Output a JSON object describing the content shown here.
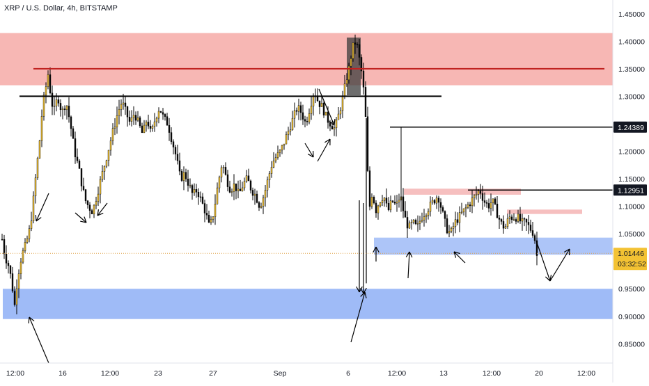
{
  "header": {
    "title": "XRP / U.S. Dollar, 4h, BITSTAMP"
  },
  "colors": {
    "bull": "#f3c233",
    "bear": "#0b0b0b",
    "resistance_zone": "#f7b3b0",
    "small_red_zone": "#f6bcbc",
    "support_zone": "#9fbbf7",
    "resistance_line": "#c0211f",
    "price_line": "#e0a44a",
    "price_label_bg": "#f3c233"
  },
  "price_axis": {
    "ticks": [
      "1.45000",
      "1.40000",
      "1.35000",
      "1.30000",
      "1.25000",
      "1.20000",
      "1.15000",
      "1.10000",
      "1.05000",
      "1.00000",
      "0.95000",
      "0.90000",
      "0.85000"
    ],
    "labels": [
      {
        "text": "1.24389",
        "style": "dark"
      },
      {
        "text": "1.12951",
        "style": "dark"
      },
      {
        "text": "1.01446",
        "style": "last"
      }
    ],
    "countdown": "03:32:52"
  },
  "time_axis": {
    "ticks": [
      "12:00",
      "16",
      "12:00",
      "23",
      "27",
      "Sep",
      "6",
      "12:00",
      "13",
      "12:00",
      "20",
      "12:00"
    ]
  },
  "chart_data": {
    "type": "candlestick",
    "title": "XRP / U.S. Dollar, 4h, BITSTAMP",
    "ylim": [
      0.815,
      1.475
    ],
    "last_price": 1.01446,
    "horizontal_levels": [
      1.35,
      1.3,
      1.24389,
      1.12951
    ],
    "zones": [
      {
        "type": "resistance",
        "from": 1.32,
        "to": 1.415
      },
      {
        "type": "support",
        "from": 0.895,
        "to": 0.95
      },
      {
        "type": "support",
        "from": 1.012,
        "to": 1.043
      },
      {
        "type": "resistance",
        "from": 1.121,
        "to": 1.132
      },
      {
        "type": "resistance",
        "from": 1.086,
        "to": 1.094
      }
    ],
    "price_path": [
      [
        2,
        1.04
      ],
      [
        6,
        1.01
      ],
      [
        12,
        0.99
      ],
      [
        16,
        0.96
      ],
      [
        20,
        0.92
      ],
      [
        24,
        0.97
      ],
      [
        30,
        1.01
      ],
      [
        36,
        1.03
      ],
      [
        42,
        1.06
      ],
      [
        46,
        1.1
      ],
      [
        50,
        1.15
      ],
      [
        56,
        1.22
      ],
      [
        60,
        1.28
      ],
      [
        64,
        1.31
      ],
      [
        68,
        1.34
      ],
      [
        72,
        1.3
      ],
      [
        76,
        1.27
      ],
      [
        82,
        1.3
      ],
      [
        88,
        1.27
      ],
      [
        94,
        1.29
      ],
      [
        100,
        1.25
      ],
      [
        106,
        1.2
      ],
      [
        112,
        1.17
      ],
      [
        118,
        1.13
      ],
      [
        122,
        1.11
      ],
      [
        126,
        1.1
      ],
      [
        132,
        1.09
      ],
      [
        138,
        1.12
      ],
      [
        144,
        1.15
      ],
      [
        150,
        1.18
      ],
      [
        156,
        1.21
      ],
      [
        162,
        1.24
      ],
      [
        168,
        1.27
      ],
      [
        174,
        1.29
      ],
      [
        180,
        1.27
      ],
      [
        186,
        1.25
      ],
      [
        192,
        1.27
      ],
      [
        198,
        1.25
      ],
      [
        204,
        1.23
      ],
      [
        210,
        1.26
      ],
      [
        216,
        1.23
      ],
      [
        222,
        1.26
      ],
      [
        228,
        1.28
      ],
      [
        234,
        1.26
      ],
      [
        240,
        1.25
      ],
      [
        246,
        1.22
      ],
      [
        252,
        1.19
      ],
      [
        258,
        1.15
      ],
      [
        264,
        1.16
      ],
      [
        270,
        1.14
      ],
      [
        276,
        1.12
      ],
      [
        282,
        1.13
      ],
      [
        288,
        1.11
      ],
      [
        294,
        1.09
      ],
      [
        300,
        1.06
      ],
      [
        306,
        1.09
      ],
      [
        312,
        1.14
      ],
      [
        318,
        1.18
      ],
      [
        324,
        1.15
      ],
      [
        330,
        1.13
      ],
      [
        336,
        1.14
      ],
      [
        342,
        1.12
      ],
      [
        348,
        1.14
      ],
      [
        354,
        1.15
      ],
      [
        360,
        1.13
      ],
      [
        366,
        1.12
      ],
      [
        372,
        1.1
      ],
      [
        378,
        1.12
      ],
      [
        384,
        1.15
      ],
      [
        390,
        1.18
      ],
      [
        396,
        1.19
      ],
      [
        402,
        1.2
      ],
      [
        408,
        1.22
      ],
      [
        414,
        1.24
      ],
      [
        420,
        1.26
      ],
      [
        426,
        1.28
      ],
      [
        432,
        1.27
      ],
      [
        438,
        1.25
      ],
      [
        444,
        1.28
      ],
      [
        450,
        1.31
      ],
      [
        456,
        1.29
      ],
      [
        462,
        1.28
      ],
      [
        468,
        1.26
      ],
      [
        474,
        1.25
      ],
      [
        480,
        1.24
      ],
      [
        486,
        1.27
      ],
      [
        492,
        1.3
      ],
      [
        496,
        1.33
      ],
      [
        500,
        1.35
      ],
      [
        504,
        1.38
      ],
      [
        508,
        1.4
      ],
      [
        512,
        1.39
      ],
      [
        516,
        1.36
      ],
      [
        520,
        1.33
      ],
      [
        524,
        1.26
      ],
      [
        527,
        1.16
      ],
      [
        530,
        1.1
      ],
      [
        534,
        1.13
      ],
      [
        538,
        1.09
      ],
      [
        544,
        1.11
      ],
      [
        550,
        1.12
      ],
      [
        556,
        1.09
      ],
      [
        562,
        1.11
      ],
      [
        568,
        1.1
      ],
      [
        574,
        1.12
      ],
      [
        580,
        1.08
      ],
      [
        586,
        1.06
      ],
      [
        592,
        1.07
      ],
      [
        598,
        1.06
      ],
      [
        604,
        1.08
      ],
      [
        610,
        1.09
      ],
      [
        616,
        1.1
      ],
      [
        622,
        1.11
      ],
      [
        628,
        1.12
      ],
      [
        634,
        1.09
      ],
      [
        640,
        1.06
      ],
      [
        646,
        1.05
      ],
      [
        652,
        1.07
      ],
      [
        658,
        1.08
      ],
      [
        664,
        1.09
      ],
      [
        670,
        1.1
      ],
      [
        676,
        1.11
      ],
      [
        682,
        1.12
      ],
      [
        688,
        1.13
      ],
      [
        694,
        1.11
      ],
      [
        700,
        1.1
      ],
      [
        706,
        1.11
      ],
      [
        712,
        1.09
      ],
      [
        718,
        1.07
      ],
      [
        724,
        1.06
      ],
      [
        730,
        1.08
      ],
      [
        736,
        1.08
      ],
      [
        742,
        1.08
      ],
      [
        748,
        1.07
      ],
      [
        754,
        1.07
      ],
      [
        760,
        1.06
      ],
      [
        766,
        1.05
      ],
      [
        770,
        1.01
      ]
    ]
  }
}
